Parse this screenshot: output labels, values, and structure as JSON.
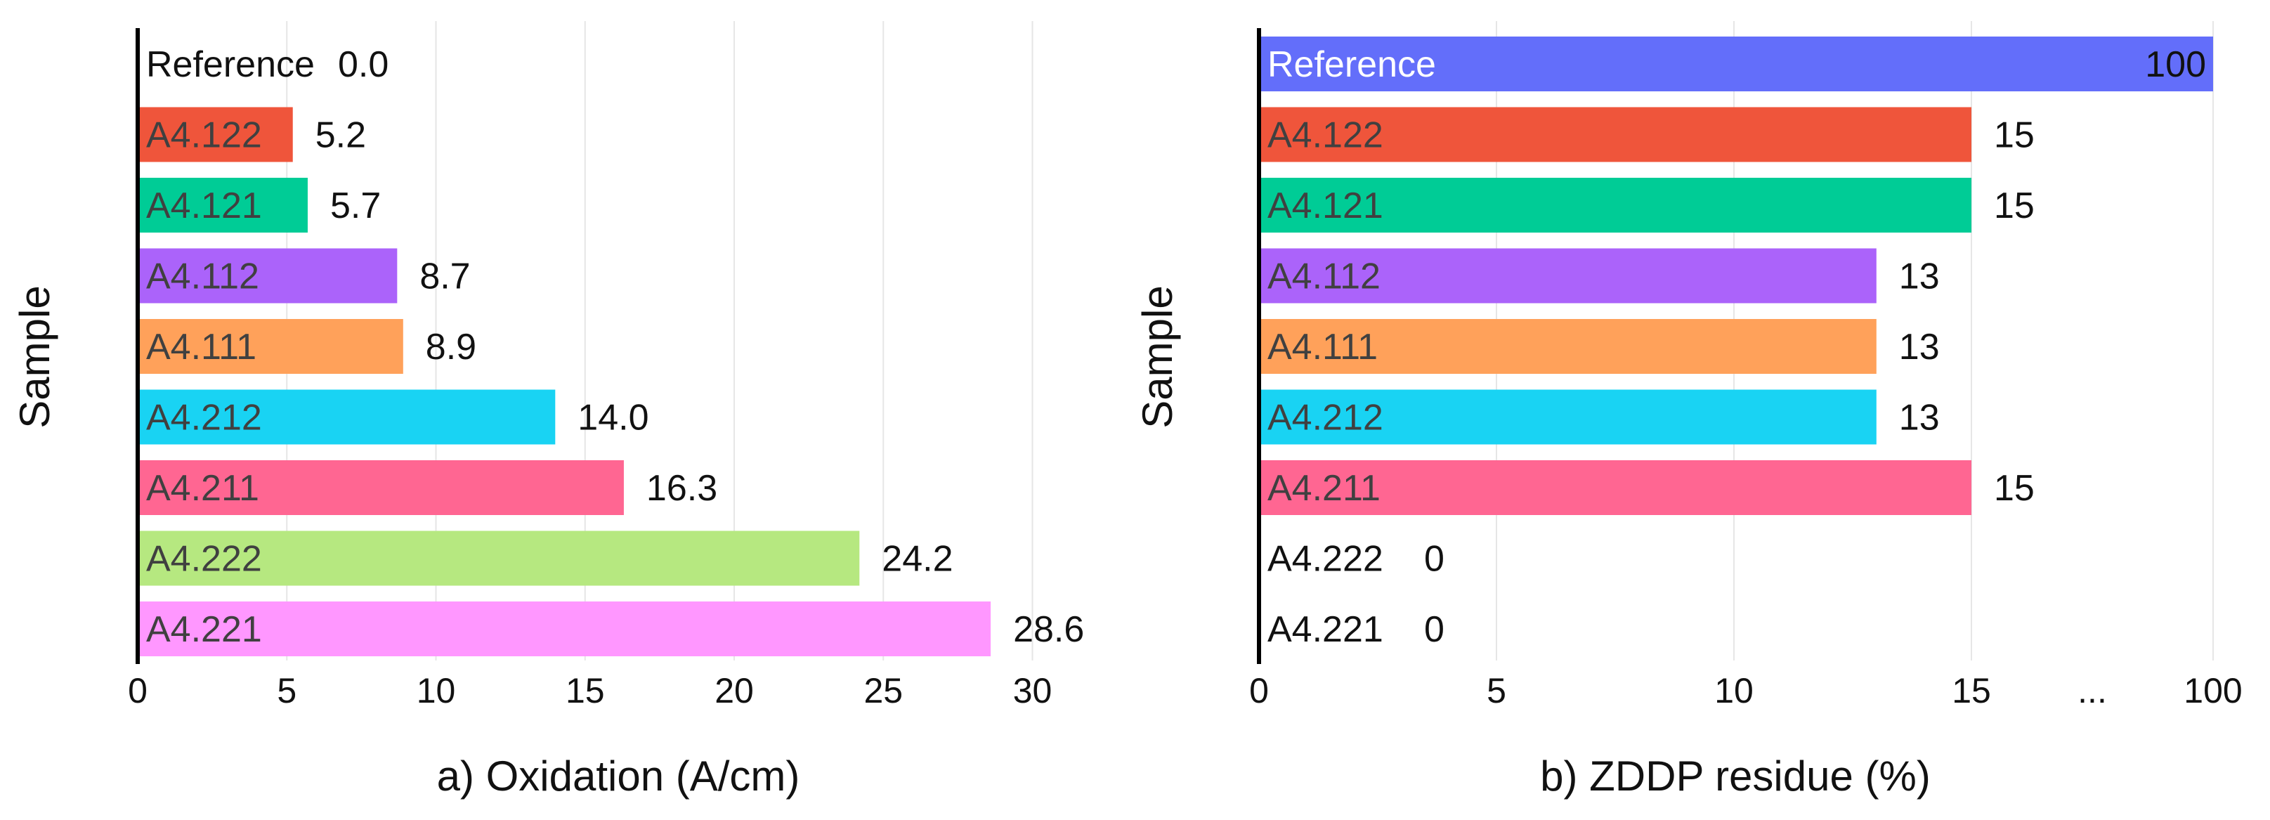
{
  "chart_data": [
    {
      "type": "bar",
      "orientation": "horizontal",
      "xlabel": "a) Oxidation (A/cm)",
      "ylabel": "Sample",
      "xlim": [
        0,
        30
      ],
      "xticks": [
        "0",
        "5",
        "10",
        "15",
        "20",
        "25",
        "30"
      ],
      "grid": true,
      "categories": [
        "Reference",
        "A4.122",
        "A4.121",
        "A4.112",
        "A4.111",
        "A4.212",
        "A4.211",
        "A4.222",
        "A4.221"
      ],
      "values": [
        0.0,
        5.2,
        5.7,
        8.7,
        8.9,
        14.0,
        16.3,
        24.2,
        28.6
      ],
      "value_labels": [
        "0.0",
        "5.2",
        "5.7",
        "8.7",
        "8.9",
        "14.0",
        "16.3",
        "24.2",
        "28.6"
      ],
      "colors": [
        "#ffffff",
        "#ef553b",
        "#00cc96",
        "#ab63fa",
        "#ffa15a",
        "#19d3f3",
        "#ff6692",
        "#b6e880",
        "#ff97ff"
      ]
    },
    {
      "type": "bar",
      "orientation": "horizontal",
      "xlabel": "b) ZDDP residue (%)",
      "ylabel": "Sample",
      "axis_break": true,
      "xlim": [
        0,
        20
      ],
      "xticks": [
        "0",
        "5",
        "10",
        "15",
        "...",
        "100"
      ],
      "grid": true,
      "categories": [
        "Reference",
        "A4.122",
        "A4.121",
        "A4.112",
        "A4.111",
        "A4.212",
        "A4.211",
        "A4.222",
        "A4.221"
      ],
      "values": [
        100,
        15,
        15,
        13,
        13,
        13,
        15,
        0,
        0
      ],
      "value_labels": [
        "100",
        "15",
        "15",
        "13",
        "13",
        "13",
        "15",
        "0",
        "0"
      ],
      "colors": [
        "#636efa",
        "#ef553b",
        "#00cc96",
        "#ab63fa",
        "#ffa15a",
        "#19d3f3",
        "#ff6692",
        "#b6e880",
        "#ff97ff"
      ]
    }
  ]
}
